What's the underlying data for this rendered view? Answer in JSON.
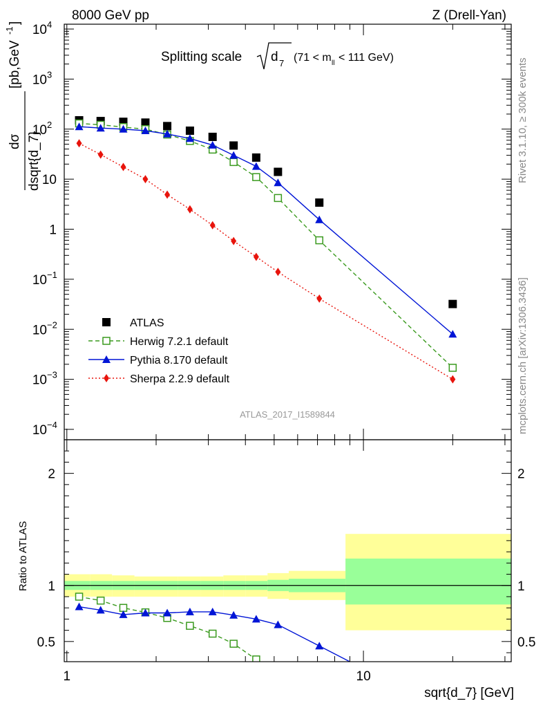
{
  "header": {
    "left": "8000 GeV pp",
    "right": "Z (Drell-Yan)"
  },
  "title": {
    "prefix": "Splitting scale",
    "symbol": "d",
    "subscript": "7",
    "range_left": "(71 < m",
    "range_sub": "ll",
    "range_right": " < 111 GeV)"
  },
  "side_labels": {
    "rivet": "Rivet 3.1.10, ≥ 300k events",
    "mcplots": "mcplots.cern.ch [arXiv:1306.3436]"
  },
  "analysis_id": "ATLAS_2017_I1589844",
  "colors": {
    "atlas": "#000000",
    "herwig": "#3a9a1e",
    "pythia": "#0015d6",
    "sherpa": "#e8140c",
    "band_inner": "#99ff99",
    "band_outer": "#ffff99"
  },
  "chart_data": [
    {
      "type": "scatter",
      "panel": "main",
      "y_scale": "log",
      "x_scale": "log",
      "ylabel": "dσ/dsqrt{d_7} [pb,GeV⁻¹]",
      "ylabel_num": "dσ",
      "ylabel_den": "dsqrt{d_7}",
      "ylabel_unit": "[pb,GeV",
      "ylabel_unit_sup": "-1",
      "xlim": [
        0.98,
        31.5
      ],
      "ylim": [
        0.0001,
        10000
      ],
      "y_ticks": [
        {
          "v": 10000,
          "base": "10",
          "exp": "4"
        },
        {
          "v": 1000,
          "base": "10",
          "exp": "3"
        },
        {
          "v": 100,
          "base": "10",
          "exp": "2"
        },
        {
          "v": 10,
          "base": "10",
          "exp": ""
        },
        {
          "v": 1,
          "base": "1",
          "exp": ""
        },
        {
          "v": 0.1,
          "base": "10",
          "exp": "−1"
        },
        {
          "v": 0.01,
          "base": "10",
          "exp": "−2"
        },
        {
          "v": 0.001,
          "base": "10",
          "exp": "−3"
        },
        {
          "v": 0.0001,
          "base": "10",
          "exp": "−4"
        }
      ],
      "legend_position": "center-left",
      "series": [
        {
          "name": "ATLAS",
          "marker": "square",
          "x": [
            1.1,
            1.3,
            1.55,
            1.84,
            2.18,
            2.6,
            3.1,
            3.65,
            4.35,
            5.15,
            7.1,
            20.0
          ],
          "values": [
            150,
            145,
            140,
            135,
            115,
            93,
            70,
            47,
            27,
            14,
            3.4,
            0.032
          ]
        },
        {
          "name": "Herwig 7.2.1 default",
          "marker": "open-square",
          "dash": "6,4",
          "x": [
            1.1,
            1.3,
            1.55,
            1.84,
            2.18,
            2.6,
            3.1,
            3.65,
            4.35,
            5.15,
            7.1,
            20.0
          ],
          "values": [
            130,
            122,
            110,
            100,
            78,
            58,
            39,
            22,
            11,
            4.2,
            0.6,
            0.0017
          ]
        },
        {
          "name": "Pythia 8.170 default",
          "marker": "triangle",
          "dash": "",
          "x": [
            1.1,
            1.3,
            1.55,
            1.84,
            2.18,
            2.6,
            3.1,
            3.65,
            4.35,
            5.15,
            7.1,
            20.0
          ],
          "values": [
            112,
            105,
            100,
            93,
            80,
            65,
            48,
            30,
            18,
            8.5,
            1.55,
            0.008
          ]
        },
        {
          "name": "Sherpa 2.2.9 default",
          "marker": "diamond",
          "dash": "2,3",
          "x": [
            1.1,
            1.3,
            1.55,
            1.84,
            2.18,
            2.6,
            3.1,
            3.65,
            4.35,
            5.15,
            7.1,
            20.0
          ],
          "values": [
            52,
            31,
            17.5,
            10,
            4.9,
            2.5,
            1.2,
            0.58,
            0.28,
            0.14,
            0.041,
            0.001
          ]
        }
      ]
    },
    {
      "type": "line",
      "panel": "ratio",
      "x_scale": "log",
      "y_scale": "linear",
      "ylabel": "Ratio to ATLAS",
      "xlabel": "sqrt{d_7} [GeV]",
      "xlim": [
        0.98,
        31.5
      ],
      "ylim": [
        0.32,
        2.3
      ],
      "y_ticks": [
        {
          "v": 2,
          "label": "2"
        },
        {
          "v": 1,
          "label": "1"
        },
        {
          "v": 0.5,
          "label": "0.5"
        }
      ],
      "x_ticks": [
        {
          "v": 1,
          "label": "1"
        },
        {
          "v": 10,
          "label": "10"
        }
      ],
      "bands": {
        "edges": [
          0.98,
          1.2,
          1.42,
          1.69,
          2.0,
          2.37,
          2.82,
          3.37,
          4.0,
          4.75,
          5.6,
          8.7,
          31.5
        ],
        "inner": [
          [
            0.96,
            1.04
          ],
          [
            0.96,
            1.04
          ],
          [
            0.96,
            1.04
          ],
          [
            0.96,
            1.04
          ],
          [
            0.96,
            1.04
          ],
          [
            0.96,
            1.04
          ],
          [
            0.96,
            1.04
          ],
          [
            0.96,
            1.04
          ],
          [
            0.96,
            1.04
          ],
          [
            0.95,
            1.05
          ],
          [
            0.94,
            1.06
          ],
          [
            0.83,
            1.24
          ]
        ],
        "outer": [
          [
            0.9,
            1.1
          ],
          [
            0.9,
            1.1
          ],
          [
            0.9,
            1.09
          ],
          [
            0.9,
            1.08
          ],
          [
            0.9,
            1.08
          ],
          [
            0.9,
            1.08
          ],
          [
            0.9,
            1.08
          ],
          [
            0.9,
            1.09
          ],
          [
            0.9,
            1.09
          ],
          [
            0.88,
            1.11
          ],
          [
            0.87,
            1.13
          ],
          [
            0.6,
            1.46
          ]
        ]
      },
      "series": [
        {
          "name": "Herwig 7.2.1 default",
          "x": [
            1.1,
            1.3,
            1.55,
            1.84,
            2.18,
            2.6,
            3.1,
            3.65,
            4.35
          ],
          "values": [
            0.9,
            0.865,
            0.8,
            0.76,
            0.71,
            0.64,
            0.57,
            0.48,
            0.34
          ],
          "extend_to_x": 4.6
        },
        {
          "name": "Pythia 8.170 default",
          "x": [
            1.1,
            1.3,
            1.55,
            1.84,
            2.18,
            2.6,
            3.1,
            3.65,
            4.35,
            5.15,
            7.1
          ],
          "values": [
            0.81,
            0.78,
            0.74,
            0.755,
            0.755,
            0.765,
            0.765,
            0.735,
            0.7,
            0.65,
            0.46
          ],
          "extend_to_x": 9.8
        }
      ]
    }
  ]
}
